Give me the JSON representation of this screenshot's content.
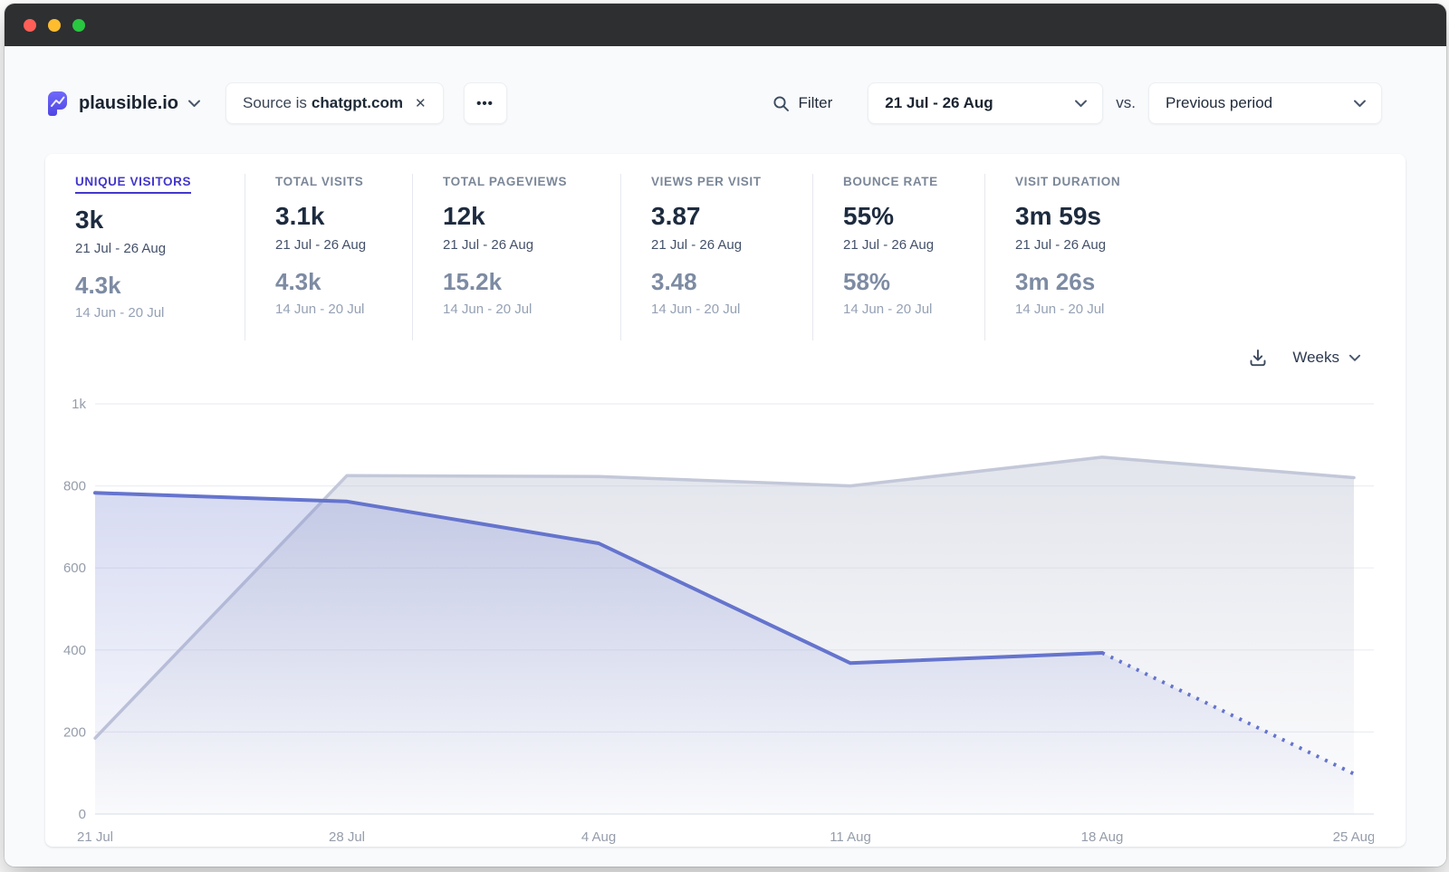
{
  "window": {
    "traffic_lights": [
      "close",
      "minimize",
      "zoom"
    ]
  },
  "header": {
    "site_name": "plausible.io",
    "filter_chip": {
      "prefix": "Source is",
      "value": "chatgpt.com",
      "close_glyph": "✕"
    },
    "more_glyph": "•••",
    "filter_label": "Filter",
    "date_range": "21 Jul - 26 Aug",
    "vs_label": "vs.",
    "comparison": "Previous period"
  },
  "stats": [
    {
      "label": "UNIQUE VISITORS",
      "value": "3k",
      "period": "21 Jul - 26 Aug",
      "prev_value": "4.3k",
      "prev_period": "14 Jun - 20 Jul",
      "active": true
    },
    {
      "label": "TOTAL VISITS",
      "value": "3.1k",
      "period": "21 Jul - 26 Aug",
      "prev_value": "4.3k",
      "prev_period": "14 Jun - 20 Jul"
    },
    {
      "label": "TOTAL PAGEVIEWS",
      "value": "12k",
      "period": "21 Jul - 26 Aug",
      "prev_value": "15.2k",
      "prev_period": "14 Jun - 20 Jul"
    },
    {
      "label": "VIEWS PER VISIT",
      "value": "3.87",
      "period": "21 Jul - 26 Aug",
      "prev_value": "3.48",
      "prev_period": "14 Jun - 20 Jul"
    },
    {
      "label": "BOUNCE RATE",
      "value": "55%",
      "period": "21 Jul - 26 Aug",
      "prev_value": "58%",
      "prev_period": "14 Jun - 20 Jul"
    },
    {
      "label": "VISIT DURATION",
      "value": "3m 59s",
      "period": "21 Jul - 26 Aug",
      "prev_value": "3m 26s",
      "prev_period": "14 Jun - 20 Jul"
    }
  ],
  "chart_controls": {
    "interval_label": "Weeks"
  },
  "colors": {
    "accent": "#4338ca",
    "current_line": "#6574cd",
    "previous_line": "#c3c8d9",
    "titlebar": "#2e2f31",
    "traffic_red": "#ff5f57",
    "traffic_yellow": "#febc2e",
    "traffic_green": "#28c840"
  },
  "chart_data": {
    "type": "area",
    "title": "Unique visitors by week",
    "x": [
      "21 Jul",
      "28 Jul",
      "4 Aug",
      "11 Aug",
      "18 Aug",
      "25 Aug"
    ],
    "series": [
      {
        "name": "21 Jul - 26 Aug",
        "values": [
          783,
          762,
          660,
          368,
          393,
          98
        ],
        "color": "#6574cd",
        "dashed_from_index": 4
      },
      {
        "name": "14 Jun - 20 Jul",
        "values": [
          185,
          825,
          823,
          800,
          870,
          820
        ],
        "color": "#c3c8d9"
      }
    ],
    "ylim": [
      0,
      1000
    ],
    "yticks": [
      0,
      200,
      400,
      600,
      800,
      1000
    ],
    "ytick_labels": [
      "0",
      "200",
      "400",
      "600",
      "800",
      "1k"
    ],
    "grid": true,
    "legend": "none"
  }
}
